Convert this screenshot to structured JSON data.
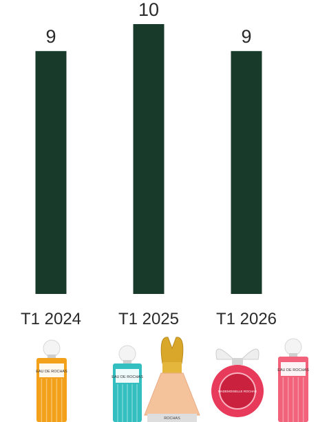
{
  "chart_data": {
    "type": "bar",
    "categories": [
      "T1 2024",
      "T1 2025",
      "T1 2026"
    ],
    "values": [
      9,
      10,
      9
    ],
    "data_labels": [
      "9",
      "10",
      "9"
    ],
    "ylim": [
      0,
      10
    ],
    "grid": false,
    "colors": {
      "bar": "#183a2b",
      "text": "#2a2a2a"
    }
  },
  "products": [
    {
      "category": "T1 2024",
      "bottles": [
        {
          "label": "EAU DE ROCHAS",
          "color": "#f3a11a"
        }
      ]
    },
    {
      "category": "T1 2025",
      "bottles": [
        {
          "label": "EAU DE ROCHAS",
          "color": "#33bfc0"
        },
        {
          "label": "ROCHAS",
          "color": "#f5c39b"
        }
      ]
    },
    {
      "category": "T1 2026",
      "bottles": [
        {
          "label": "MADEMOISELLE ROCHAS",
          "color": "#e83a5a"
        },
        {
          "label": "EAU DE ROCHAS",
          "color": "#f2627a"
        }
      ]
    }
  ]
}
